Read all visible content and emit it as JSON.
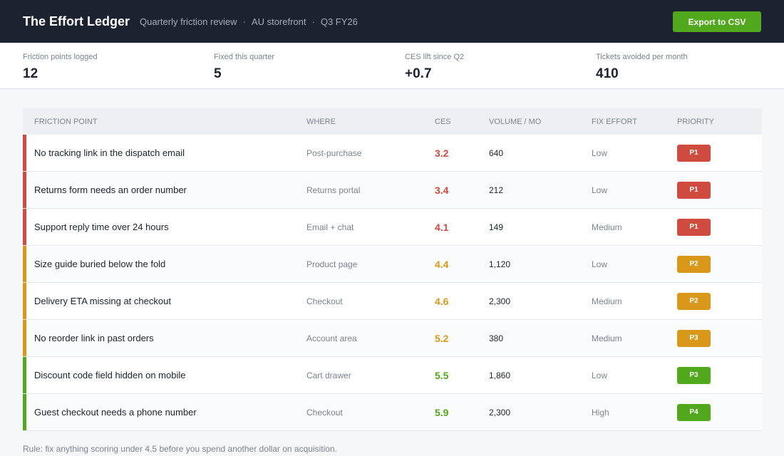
{
  "header": {
    "title": "The Effort Ledger",
    "subtitle_parts": [
      "Quarterly friction review",
      "AU storefront",
      "Q3 FY26"
    ],
    "separator": "·",
    "export_label": "Export to CSV"
  },
  "stats": [
    {
      "label": "Friction points logged",
      "value": "12"
    },
    {
      "label": "Fixed this quarter",
      "value": "5"
    },
    {
      "label": "CES lift since Q2",
      "value": "+0.7"
    },
    {
      "label": "Tickets avoided per month",
      "value": "410"
    }
  ],
  "table": {
    "columns": [
      "Friction point",
      "Where",
      "CES",
      "Volume / mo",
      "Fix effort",
      "Priority"
    ],
    "rows": [
      {
        "name": "No tracking link in the dispatch email",
        "where": "Post-purchase",
        "ces": "3.2",
        "volume": "640",
        "effort": "Low",
        "priority": "P1",
        "severity_color": "#cf4a3f",
        "priority_color": "#cf4a3f"
      },
      {
        "name": "Returns form needs an order number",
        "where": "Returns portal",
        "ces": "3.4",
        "volume": "212",
        "effort": "Low",
        "priority": "P1",
        "severity_color": "#cf4a3f",
        "priority_color": "#cf4a3f"
      },
      {
        "name": "Support reply time over 24 hours",
        "where": "Email + chat",
        "ces": "4.1",
        "volume": "149",
        "effort": "Medium",
        "priority": "P1",
        "severity_color": "#cf4a3f",
        "priority_color": "#cf4a3f"
      },
      {
        "name": "Size guide buried below the fold",
        "where": "Product page",
        "ces": "4.4",
        "volume": "1,120",
        "effort": "Low",
        "priority": "P2",
        "severity_color": "#d9981a",
        "priority_color": "#d9981a"
      },
      {
        "name": "Delivery ETA missing at checkout",
        "where": "Checkout",
        "ces": "4.6",
        "volume": "2,300",
        "effort": "Medium",
        "priority": "P2",
        "severity_color": "#d9981a",
        "priority_color": "#d9981a"
      },
      {
        "name": "No reorder link in past orders",
        "where": "Account area",
        "ces": "5.2",
        "volume": "380",
        "effort": "Medium",
        "priority": "P3",
        "severity_color": "#d9981a",
        "priority_color": "#d9981a"
      },
      {
        "name": "Discount code field hidden on mobile",
        "where": "Cart drawer",
        "ces": "5.5",
        "volume": "1,860",
        "effort": "Low",
        "priority": "P3",
        "severity_color": "#52a81c",
        "priority_color": "#52a81c"
      },
      {
        "name": "Guest checkout needs a phone number",
        "where": "Checkout",
        "ces": "5.9",
        "volume": "2,300",
        "effort": "High",
        "priority": "P4",
        "severity_color": "#52a81c",
        "priority_color": "#52a81c"
      }
    ]
  },
  "footnote": "Rule: fix anything scoring under 4.5 before you spend another dollar on acquisition."
}
